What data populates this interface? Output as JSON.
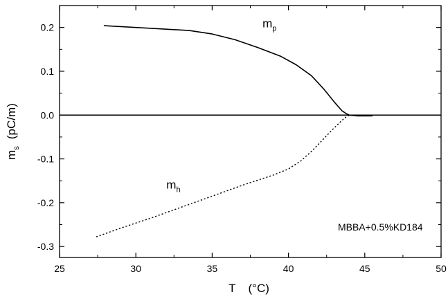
{
  "chart_data": {
    "type": "line",
    "title": "",
    "xlabel": {
      "symbol": "T",
      "unit": "(°C)"
    },
    "ylabel": {
      "symbol": "m",
      "subscript": "s",
      "unit": "(pC/m)"
    },
    "xlim": [
      25,
      50
    ],
    "ylim": [
      -0.325,
      0.25
    ],
    "x_ticks": [
      "25",
      "30",
      "35",
      "40",
      "45",
      "50"
    ],
    "y_ticks": [
      "-0.3",
      "-0.2",
      "-0.1",
      "0.0",
      "0.1",
      "0.2"
    ],
    "grid": false,
    "annotation": "MBBA+0.5%KD184",
    "series": [
      {
        "name": "m_p",
        "label_main": "m",
        "label_sub": "p",
        "style": "solid",
        "color": "#000000",
        "x": [
          27.9,
          30.0,
          32.0,
          33.5,
          35.0,
          36.5,
          38.0,
          39.5,
          40.5,
          41.5,
          42.3,
          43.0,
          43.5,
          43.8,
          44.0,
          44.5,
          45.5
        ],
        "y": [
          0.204,
          0.2,
          0.196,
          0.193,
          0.185,
          0.172,
          0.154,
          0.134,
          0.115,
          0.09,
          0.06,
          0.03,
          0.01,
          0.003,
          0.0,
          -0.002,
          -0.002
        ]
      },
      {
        "name": "m_h",
        "label_main": "m",
        "label_sub": "h",
        "style": "dotted",
        "color": "#000000",
        "x": [
          27.4,
          29.0,
          31.0,
          33.0,
          35.0,
          37.0,
          39.0,
          40.0,
          40.8,
          41.5,
          42.2,
          42.8,
          43.3,
          43.7,
          44.0
        ],
        "y": [
          -0.278,
          -0.258,
          -0.235,
          -0.21,
          -0.185,
          -0.16,
          -0.137,
          -0.123,
          -0.105,
          -0.083,
          -0.058,
          -0.036,
          -0.019,
          -0.006,
          0.0
        ]
      },
      {
        "name": "baseline",
        "style": "solid",
        "color": "#000000",
        "x": [
          25,
          50
        ],
        "y": [
          0.0,
          0.0
        ]
      }
    ]
  }
}
